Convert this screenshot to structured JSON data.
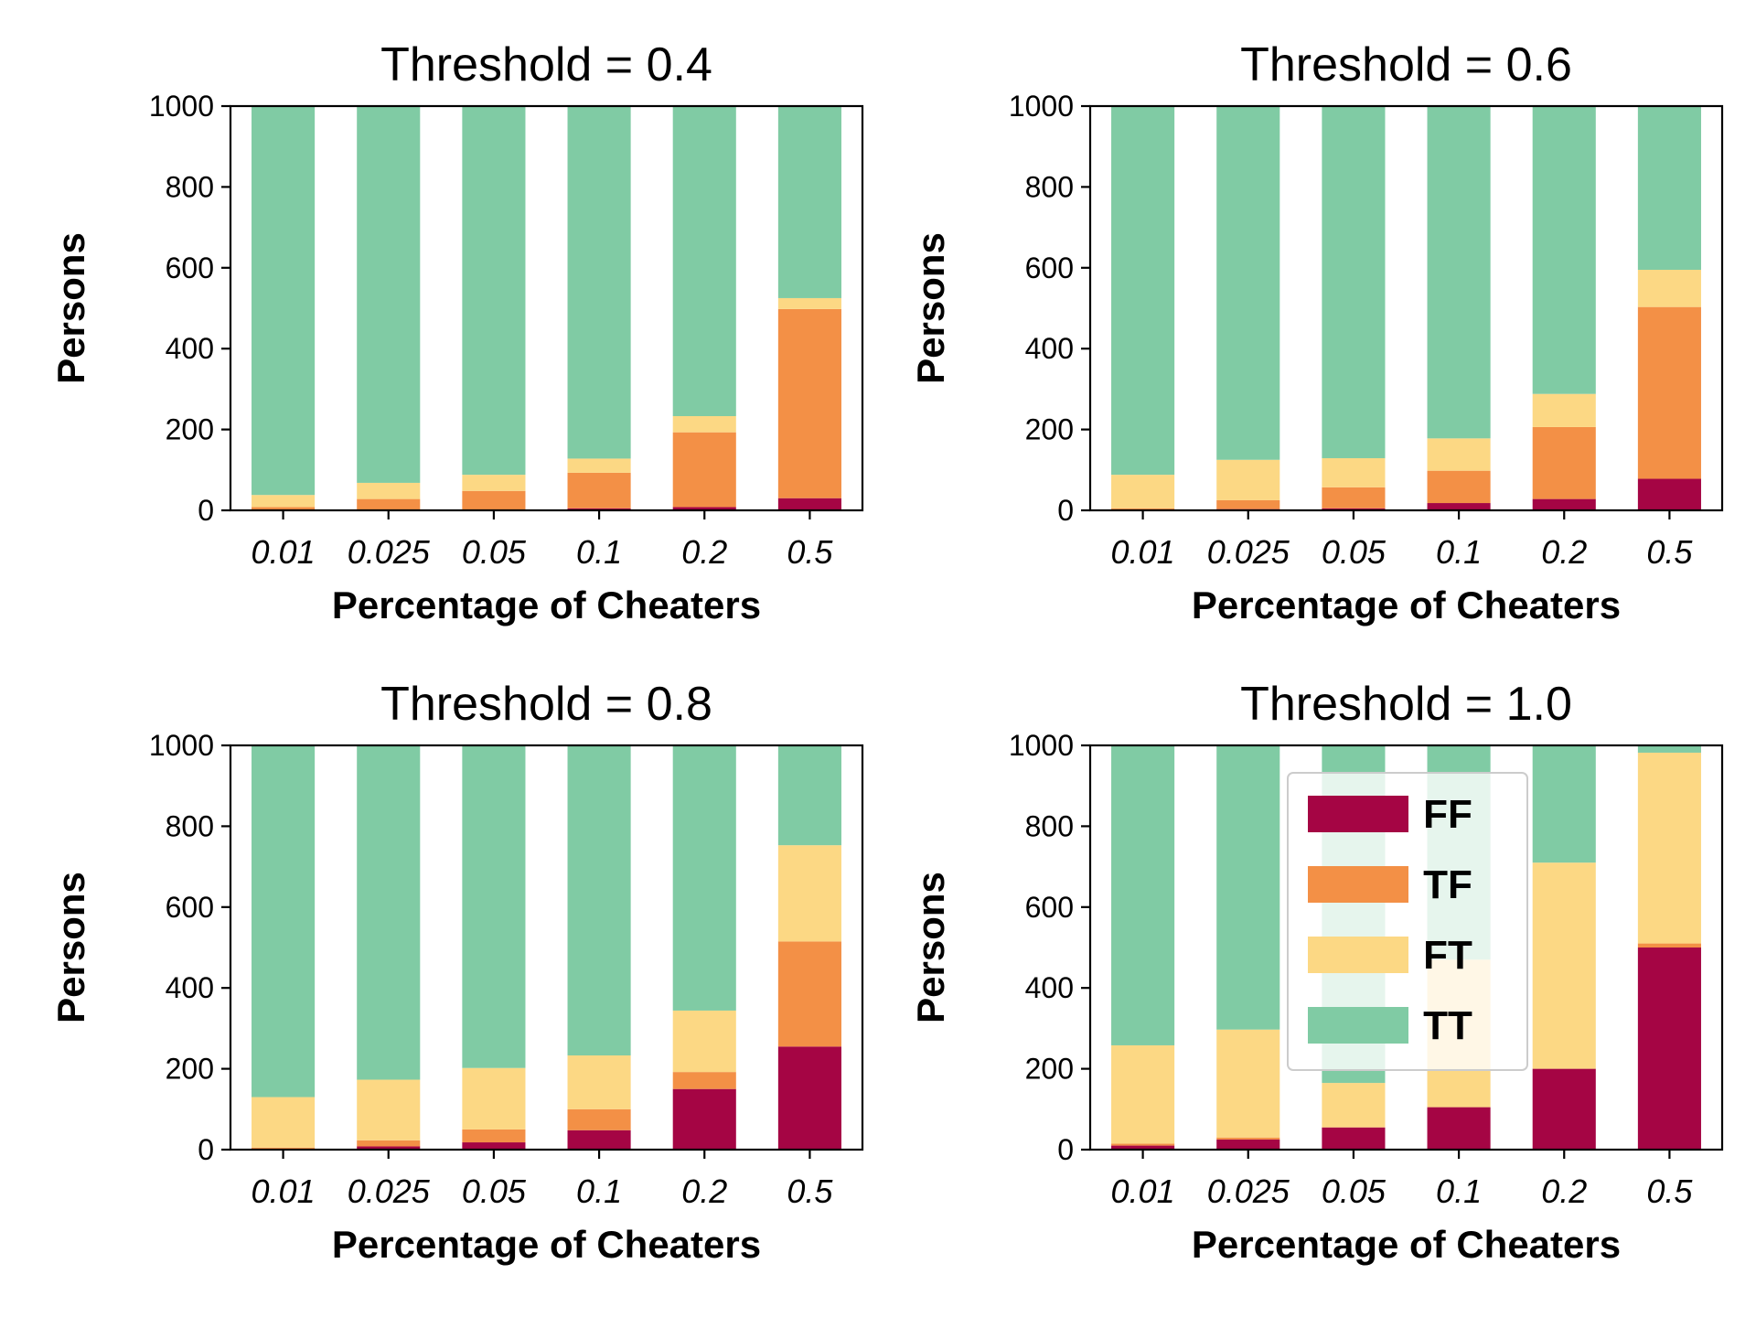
{
  "chart_data": [
    {
      "type": "bar",
      "stacked": true,
      "title": "Threshold = 0.4",
      "xlabel": "Percentage of Cheaters",
      "ylabel": "Persons",
      "categories": [
        "0.01",
        "0.025",
        "0.05",
        "0.1",
        "0.2",
        "0.5"
      ],
      "ylim": [
        0,
        1000
      ],
      "yticks": [
        "0",
        "200",
        "400",
        "600",
        "800",
        "1000"
      ],
      "series": [
        {
          "name": "FF",
          "color": "#a50544",
          "values": [
            0,
            0,
            0,
            5,
            8,
            30
          ]
        },
        {
          "name": "TF",
          "color": "#f39046",
          "values": [
            8,
            28,
            48,
            88,
            185,
            468
          ]
        },
        {
          "name": "FT",
          "color": "#fcd884",
          "values": [
            30,
            40,
            40,
            35,
            40,
            27
          ]
        },
        {
          "name": "TT",
          "color": "#80cba4",
          "values": [
            962,
            932,
            912,
            872,
            767,
            475
          ]
        }
      ]
    },
    {
      "type": "bar",
      "stacked": true,
      "title": "Threshold = 0.6",
      "xlabel": "Percentage of Cheaters",
      "ylabel": "Persons",
      "categories": [
        "0.01",
        "0.025",
        "0.05",
        "0.1",
        "0.2",
        "0.5"
      ],
      "ylim": [
        0,
        1000
      ],
      "yticks": [
        "0",
        "200",
        "400",
        "600",
        "800",
        "1000"
      ],
      "series": [
        {
          "name": "FF",
          "color": "#a50544",
          "values": [
            0,
            3,
            5,
            18,
            28,
            78
          ]
        },
        {
          "name": "TF",
          "color": "#f39046",
          "values": [
            5,
            22,
            52,
            80,
            178,
            425
          ]
        },
        {
          "name": "FT",
          "color": "#fcd884",
          "values": [
            83,
            100,
            72,
            80,
            82,
            92
          ]
        },
        {
          "name": "TT",
          "color": "#80cba4",
          "values": [
            912,
            875,
            871,
            822,
            712,
            405
          ]
        }
      ]
    },
    {
      "type": "bar",
      "stacked": true,
      "title": "Threshold = 0.8",
      "xlabel": "Percentage of Cheaters",
      "ylabel": "Persons",
      "categories": [
        "0.01",
        "0.025",
        "0.05",
        "0.1",
        "0.2",
        "0.5"
      ],
      "ylim": [
        0,
        1000
      ],
      "yticks": [
        "0",
        "200",
        "400",
        "600",
        "800",
        "1000"
      ],
      "series": [
        {
          "name": "FF",
          "color": "#a50544",
          "values": [
            0,
            8,
            18,
            48,
            150,
            255
          ]
        },
        {
          "name": "TF",
          "color": "#f39046",
          "values": [
            5,
            15,
            32,
            52,
            42,
            260
          ]
        },
        {
          "name": "FT",
          "color": "#fcd884",
          "values": [
            125,
            150,
            152,
            133,
            152,
            238
          ]
        },
        {
          "name": "TT",
          "color": "#80cba4",
          "values": [
            870,
            827,
            798,
            767,
            656,
            247
          ]
        }
      ]
    },
    {
      "type": "bar",
      "stacked": true,
      "title": "Threshold = 1.0",
      "xlabel": "Percentage of Cheaters",
      "ylabel": "Persons",
      "categories": [
        "0.01",
        "0.025",
        "0.05",
        "0.1",
        "0.2",
        "0.5"
      ],
      "ylim": [
        0,
        1000
      ],
      "yticks": [
        "0",
        "200",
        "400",
        "600",
        "800",
        "1000"
      ],
      "legend": "upper center",
      "series": [
        {
          "name": "FF",
          "color": "#a50544",
          "values": [
            10,
            25,
            55,
            105,
            200,
            500
          ]
        },
        {
          "name": "TF",
          "color": "#f39046",
          "values": [
            5,
            5,
            0,
            0,
            0,
            10
          ]
        },
        {
          "name": "FT",
          "color": "#fcd884",
          "values": [
            243,
            267,
            110,
            365,
            510,
            472
          ]
        },
        {
          "name": "TT",
          "color": "#80cba4",
          "values": [
            742,
            703,
            835,
            530,
            290,
            18
          ]
        }
      ]
    }
  ],
  "legend": {
    "items": [
      {
        "label": "FF",
        "color": "#a50544"
      },
      {
        "label": "TF",
        "color": "#f39046"
      },
      {
        "label": "FT",
        "color": "#fcd884"
      },
      {
        "label": "TT",
        "color": "#80cba4"
      }
    ]
  }
}
